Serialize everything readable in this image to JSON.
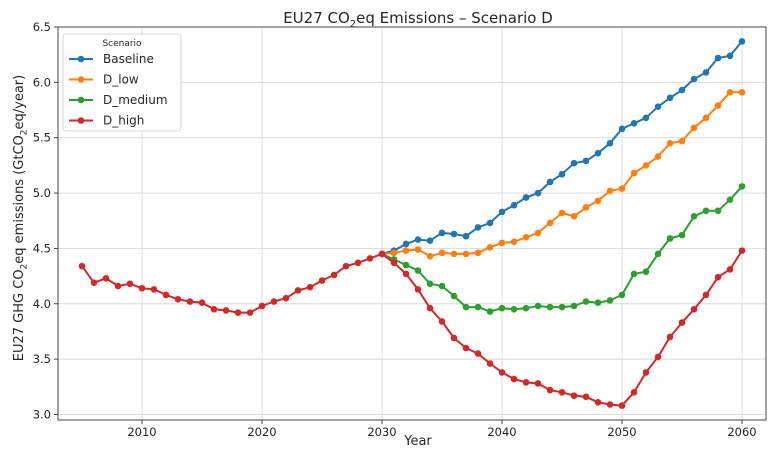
{
  "chart_data": {
    "type": "line",
    "title_main": "EU27 CO",
    "title_sub": "2",
    "title_rest": "eq Emissions – Scenario D",
    "xlabel": "Year",
    "ylabel_main": "EU27 GHG CO",
    "ylabel_sub": "2",
    "ylabel_rest": "eq emissions (GtCO",
    "ylabel_sub2": "2",
    "ylabel_end": "eq/year)",
    "xlim": [
      2003,
      2062
    ],
    "ylim": [
      2.95,
      6.5
    ],
    "xticks": [
      2010,
      2020,
      2030,
      2040,
      2050,
      2060
    ],
    "yticks": [
      3.0,
      3.5,
      4.0,
      4.5,
      5.0,
      5.5,
      6.0,
      6.5
    ],
    "ytick_labels": [
      "3.0",
      "3.5",
      "4.0",
      "4.5",
      "5.0",
      "5.5",
      "6.0",
      "6.5"
    ],
    "grid": true,
    "legend": {
      "title": "Scenario",
      "placement": "top-left"
    },
    "series": [
      {
        "name": "Baseline",
        "color": "#1f77b4",
        "x": [
          2030,
          2031,
          2032,
          2033,
          2034,
          2035,
          2036,
          2037,
          2038,
          2039,
          2040,
          2041,
          2042,
          2043,
          2044,
          2045,
          2046,
          2047,
          2048,
          2049,
          2050,
          2051,
          2052,
          2053,
          2054,
          2055,
          2056,
          2057,
          2058,
          2059,
          2060
        ],
        "y": [
          4.45,
          4.48,
          4.54,
          4.58,
          4.57,
          4.64,
          4.63,
          4.61,
          4.69,
          4.73,
          4.83,
          4.89,
          4.96,
          5.0,
          5.1,
          5.17,
          5.27,
          5.29,
          5.36,
          5.45,
          5.58,
          5.63,
          5.68,
          5.78,
          5.86,
          5.93,
          6.03,
          6.09,
          6.22,
          6.24,
          6.37
        ]
      },
      {
        "name": "D_low",
        "color": "#ff7f0e",
        "x": [
          2030,
          2031,
          2032,
          2033,
          2034,
          2035,
          2036,
          2037,
          2038,
          2039,
          2040,
          2041,
          2042,
          2043,
          2044,
          2045,
          2046,
          2047,
          2048,
          2049,
          2050,
          2051,
          2052,
          2053,
          2054,
          2055,
          2056,
          2057,
          2058,
          2059,
          2060
        ],
        "y": [
          4.45,
          4.46,
          4.48,
          4.49,
          4.43,
          4.46,
          4.45,
          4.45,
          4.46,
          4.51,
          4.55,
          4.56,
          4.6,
          4.64,
          4.73,
          4.82,
          4.79,
          4.87,
          4.93,
          5.02,
          5.04,
          5.18,
          5.25,
          5.33,
          5.45,
          5.47,
          5.59,
          5.68,
          5.79,
          5.91,
          5.91
        ]
      },
      {
        "name": "D_medium",
        "color": "#2ca02c",
        "x": [
          2030,
          2031,
          2032,
          2033,
          2034,
          2035,
          2036,
          2037,
          2038,
          2039,
          2040,
          2041,
          2042,
          2043,
          2044,
          2045,
          2046,
          2047,
          2048,
          2049,
          2050,
          2051,
          2052,
          2053,
          2054,
          2055,
          2056,
          2057,
          2058,
          2059,
          2060
        ],
        "y": [
          4.45,
          4.4,
          4.35,
          4.3,
          4.18,
          4.16,
          4.07,
          3.97,
          3.97,
          3.93,
          3.96,
          3.95,
          3.96,
          3.98,
          3.97,
          3.97,
          3.98,
          4.02,
          4.01,
          4.03,
          4.08,
          4.27,
          4.29,
          4.45,
          4.59,
          4.62,
          4.79,
          4.84,
          4.84,
          4.94,
          5.06
        ]
      },
      {
        "name": "D_high",
        "color": "#d62728",
        "x": [
          2005,
          2006,
          2007,
          2008,
          2009,
          2010,
          2011,
          2012,
          2013,
          2014,
          2015,
          2016,
          2017,
          2018,
          2019,
          2020,
          2021,
          2022,
          2023,
          2024,
          2025,
          2026,
          2027,
          2028,
          2029,
          2030,
          2031,
          2032,
          2033,
          2034,
          2035,
          2036,
          2037,
          2038,
          2039,
          2040,
          2041,
          2042,
          2043,
          2044,
          2045,
          2046,
          2047,
          2048,
          2049,
          2050,
          2051,
          2052,
          2053,
          2054,
          2055,
          2056,
          2057,
          2058,
          2059,
          2060
        ],
        "y": [
          4.34,
          4.19,
          4.23,
          4.16,
          4.18,
          4.14,
          4.13,
          4.08,
          4.04,
          4.02,
          4.01,
          3.95,
          3.94,
          3.92,
          3.92,
          3.98,
          4.02,
          4.05,
          4.12,
          4.15,
          4.21,
          4.26,
          4.34,
          4.37,
          4.41,
          4.45,
          4.37,
          4.27,
          4.13,
          3.96,
          3.84,
          3.69,
          3.6,
          3.55,
          3.46,
          3.38,
          3.32,
          3.29,
          3.28,
          3.22,
          3.2,
          3.17,
          3.16,
          3.11,
          3.09,
          3.08,
          3.2,
          3.38,
          3.52,
          3.7,
          3.83,
          3.95,
          4.08,
          4.24,
          4.31,
          4.48
        ]
      }
    ]
  }
}
